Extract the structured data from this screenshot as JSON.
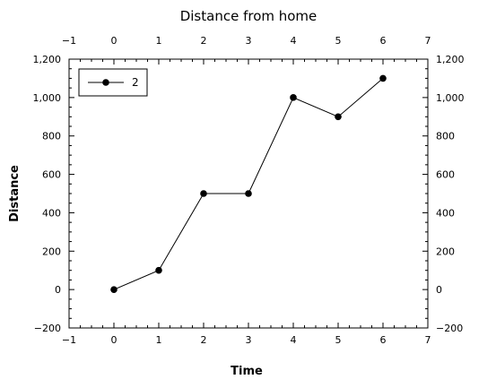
{
  "chart_data": {
    "type": "line",
    "title": "Distance from home",
    "xlabel": "Time",
    "ylabel": "Distance",
    "xlim": [
      -1,
      7
    ],
    "ylim": [
      -200,
      1200
    ],
    "x_ticks": [
      -1,
      0,
      1,
      2,
      3,
      4,
      5,
      6,
      7
    ],
    "x_tick_labels": [
      "−1",
      "0",
      "1",
      "2",
      "3",
      "4",
      "5",
      "6",
      "7"
    ],
    "y_ticks": [
      -200,
      0,
      200,
      400,
      600,
      800,
      1000,
      1200
    ],
    "y_tick_labels": [
      "−200",
      "0",
      "200",
      "400",
      "600",
      "800",
      "1,000",
      "1,200"
    ],
    "x_minor_step": 0.25,
    "y_minor_step": 50,
    "mirror_axes": true,
    "grid": false,
    "legend_position": "top-left",
    "series": [
      {
        "name": "2",
        "color": "#000000",
        "marker": "circle",
        "x": [
          0,
          1,
          2,
          3,
          4,
          5,
          6
        ],
        "y": [
          0,
          100,
          500,
          500,
          1000,
          900,
          1100
        ]
      }
    ]
  }
}
